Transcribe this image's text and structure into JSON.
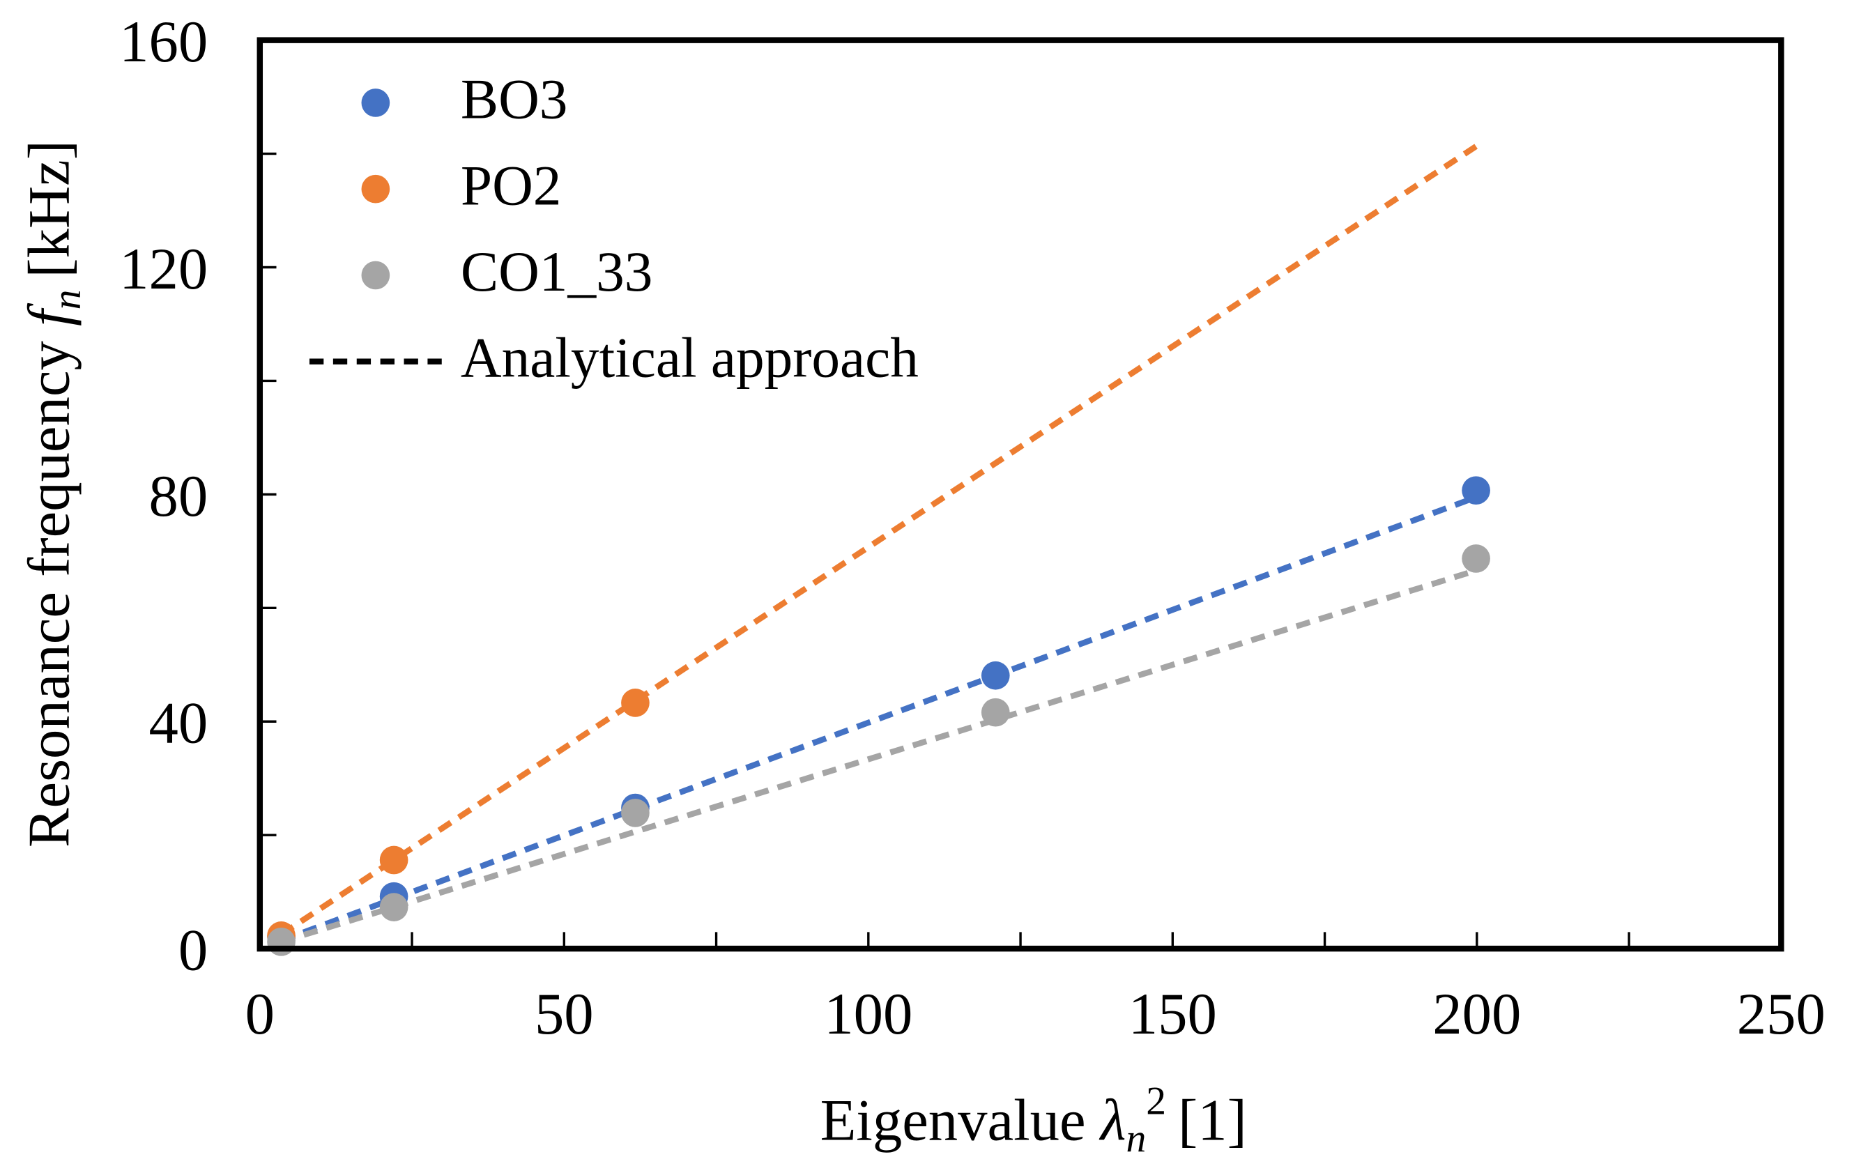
{
  "chart_data": {
    "type": "scatter",
    "x": [
      3.52,
      22.03,
      61.7,
      120.9,
      199.86
    ],
    "series": [
      {
        "name": "BO3",
        "color": "#4472c4",
        "values": [
          2.1,
          9.2,
          24.8,
          48.1,
          80.7
        ]
      },
      {
        "name": "PO2",
        "color": "#ed7d31",
        "values": [
          2.3,
          15.6,
          43.3,
          null,
          null
        ]
      },
      {
        "name": "CO1_33",
        "color": "#a5a5a5",
        "values": [
          1.2,
          7.3,
          23.9,
          41.6,
          68.7
        ]
      }
    ],
    "fit_lines": {
      "name": "Analytical approach",
      "color": "#000000",
      "lines": [
        {
          "color": "#4472c4",
          "values": [
            1.4,
            8.8,
            24.6,
            48.1,
            79.5
          ]
        },
        {
          "color": "#ed7d31",
          "values": [
            2.5,
            15.6,
            43.6,
            85.5,
            141.3
          ]
        },
        {
          "color": "#a5a5a5",
          "values": [
            1.2,
            7.3,
            20.6,
            40.3,
            66.6
          ]
        }
      ]
    },
    "xlabel": {
      "text": "Eigenvalue",
      "symbol": "λ",
      "subscript": "n",
      "superscript": "2",
      "unit": "[1]"
    },
    "ylabel": {
      "text": "Resonance frequency",
      "symbol": "f",
      "subscript": "n",
      "unit": "[kHz]"
    },
    "xlim": [
      0,
      250
    ],
    "xticks": [
      0,
      50,
      100,
      150,
      200,
      250
    ],
    "xminor_ticks": [
      25,
      75,
      125,
      175,
      225
    ],
    "ylim": [
      0,
      160
    ],
    "yticks": [
      0,
      40,
      80,
      120,
      160
    ],
    "yminor_ticks": [
      20,
      60,
      100,
      140
    ],
    "legend": "upper left"
  }
}
